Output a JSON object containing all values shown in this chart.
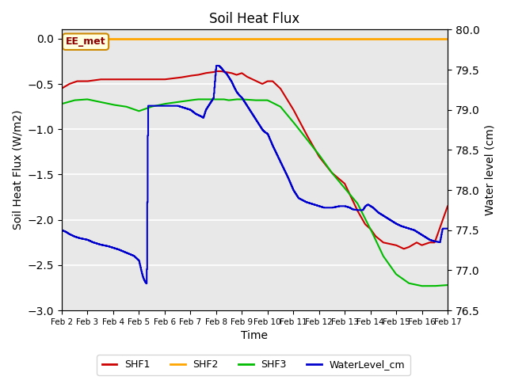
{
  "title": "Soil Heat Flux",
  "xlabel": "Time",
  "ylabel_left": "Soil Heat Flux (W/m2)",
  "ylabel_right": "Water level (cm)",
  "ylim_left": [
    -3.0,
    0.1
  ],
  "ylim_right": [
    76.5,
    80.0
  ],
  "yticks_left": [
    0.0,
    -0.5,
    -1.0,
    -1.5,
    -2.0,
    -2.5,
    -3.0
  ],
  "yticks_right": [
    76.5,
    77.0,
    77.5,
    78.0,
    78.5,
    79.0,
    79.5,
    80.0
  ],
  "xtick_labels": [
    "Feb 2",
    "Feb 3",
    "Feb 4",
    "Feb 5",
    "Feb 6",
    "Feb 7",
    "Feb 8",
    "Feb 9",
    "Feb 10",
    "Feb 11",
    "Feb 12",
    "Feb 13",
    "Feb 14",
    "Feb 15",
    "Feb 16",
    "Feb 17"
  ],
  "annotation_text": "EE_met",
  "background_color": "#e8e8e8",
  "shf2_color": "#FFA500",
  "shf1_color": "#CC0000",
  "shf3_color": "#00BB00",
  "water_color": "#0000CC",
  "shf1_xp": [
    0,
    0.3,
    0.6,
    1.0,
    1.5,
    2.0,
    2.5,
    3.0,
    3.5,
    4.0,
    4.3,
    4.6,
    4.8,
    5.0,
    5.3,
    5.6,
    5.9,
    6.0,
    6.2,
    6.4,
    6.6,
    6.8,
    7.0,
    7.2,
    7.5,
    7.8,
    8.0,
    8.2,
    8.5,
    9.0,
    9.5,
    10.0,
    10.5,
    11.0,
    11.3,
    11.5,
    11.8,
    12.0,
    12.2,
    12.5,
    13.0,
    13.3,
    13.5,
    13.8,
    14.0,
    14.3,
    14.5,
    15.0
  ],
  "shf1_yp": [
    -0.55,
    -0.5,
    -0.47,
    -0.47,
    -0.45,
    -0.45,
    -0.45,
    -0.45,
    -0.45,
    -0.45,
    -0.44,
    -0.43,
    -0.42,
    -0.41,
    -0.4,
    -0.38,
    -0.37,
    -0.36,
    -0.36,
    -0.37,
    -0.38,
    -0.4,
    -0.38,
    -0.42,
    -0.46,
    -0.5,
    -0.47,
    -0.47,
    -0.55,
    -0.78,
    -1.05,
    -1.3,
    -1.48,
    -1.6,
    -1.78,
    -1.9,
    -2.05,
    -2.1,
    -2.18,
    -2.25,
    -2.28,
    -2.32,
    -2.3,
    -2.25,
    -2.28,
    -2.25,
    -2.25,
    -1.85
  ],
  "shf3_xp": [
    0,
    0.5,
    1.0,
    1.5,
    2.0,
    2.5,
    3.0,
    3.5,
    4.0,
    4.5,
    5.0,
    5.3,
    5.5,
    5.8,
    6.0,
    6.3,
    6.5,
    6.8,
    7.0,
    7.5,
    8.0,
    8.5,
    9.0,
    9.5,
    10.0,
    10.3,
    10.5,
    11.0,
    11.5,
    12.0,
    12.5,
    13.0,
    13.5,
    14.0,
    14.5,
    15.0
  ],
  "shf3_yp": [
    -0.72,
    -0.68,
    -0.67,
    -0.7,
    -0.73,
    -0.75,
    -0.8,
    -0.75,
    -0.72,
    -0.7,
    -0.68,
    -0.67,
    -0.67,
    -0.67,
    -0.67,
    -0.67,
    -0.68,
    -0.67,
    -0.67,
    -0.68,
    -0.68,
    -0.75,
    -0.92,
    -1.1,
    -1.28,
    -1.4,
    -1.48,
    -1.65,
    -1.82,
    -2.1,
    -2.4,
    -2.6,
    -2.7,
    -2.73,
    -2.73,
    -2.72
  ],
  "water_xp": [
    0,
    0.15,
    0.3,
    0.5,
    0.7,
    1.0,
    1.2,
    1.5,
    1.8,
    2.0,
    2.2,
    2.5,
    2.8,
    3.0,
    3.05,
    3.1,
    3.15,
    3.2,
    3.25,
    3.3,
    3.35,
    3.4,
    3.45,
    3.5,
    3.6,
    3.7,
    3.8,
    4.0,
    4.2,
    4.5,
    4.8,
    5.0,
    5.2,
    5.4,
    5.5,
    5.6,
    5.7,
    5.8,
    5.9,
    6.0,
    6.1,
    6.2,
    6.3,
    6.4,
    6.5,
    6.6,
    6.7,
    6.8,
    6.9,
    7.0,
    7.1,
    7.2,
    7.3,
    7.4,
    7.5,
    7.6,
    7.7,
    7.8,
    7.9,
    8.0,
    8.2,
    8.5,
    8.8,
    9.0,
    9.2,
    9.5,
    9.8,
    10.0,
    10.2,
    10.5,
    10.8,
    11.0,
    11.2,
    11.3,
    11.5,
    11.7,
    11.8,
    11.9,
    12.0,
    12.1,
    12.2,
    12.3,
    12.5,
    12.8,
    13.0,
    13.2,
    13.5,
    13.7,
    13.8,
    13.9,
    14.0,
    14.1,
    14.2,
    14.3,
    14.5,
    14.7,
    14.8,
    15.0
  ],
  "water_yp": [
    77.5,
    77.48,
    77.45,
    77.42,
    77.4,
    77.38,
    77.35,
    77.32,
    77.3,
    77.28,
    77.26,
    77.22,
    77.18,
    77.12,
    77.05,
    76.98,
    76.92,
    76.88,
    76.85,
    76.83,
    79.05,
    79.05,
    79.05,
    79.05,
    79.05,
    79.05,
    79.05,
    79.05,
    79.05,
    79.05,
    79.02,
    79.0,
    78.95,
    78.92,
    78.9,
    79.0,
    79.05,
    79.1,
    79.15,
    79.55,
    79.55,
    79.52,
    79.48,
    79.45,
    79.4,
    79.35,
    79.28,
    79.22,
    79.18,
    79.15,
    79.1,
    79.05,
    79.0,
    78.95,
    78.9,
    78.85,
    78.8,
    78.75,
    78.72,
    78.7,
    78.55,
    78.35,
    78.15,
    78.0,
    77.9,
    77.85,
    77.82,
    77.8,
    77.78,
    77.78,
    77.8,
    77.8,
    77.78,
    77.76,
    77.75,
    77.75,
    77.8,
    77.82,
    77.8,
    77.78,
    77.75,
    77.72,
    77.68,
    77.62,
    77.58,
    77.55,
    77.52,
    77.5,
    77.48,
    77.46,
    77.44,
    77.42,
    77.4,
    77.38,
    77.36,
    77.35,
    77.52,
    77.52
  ]
}
